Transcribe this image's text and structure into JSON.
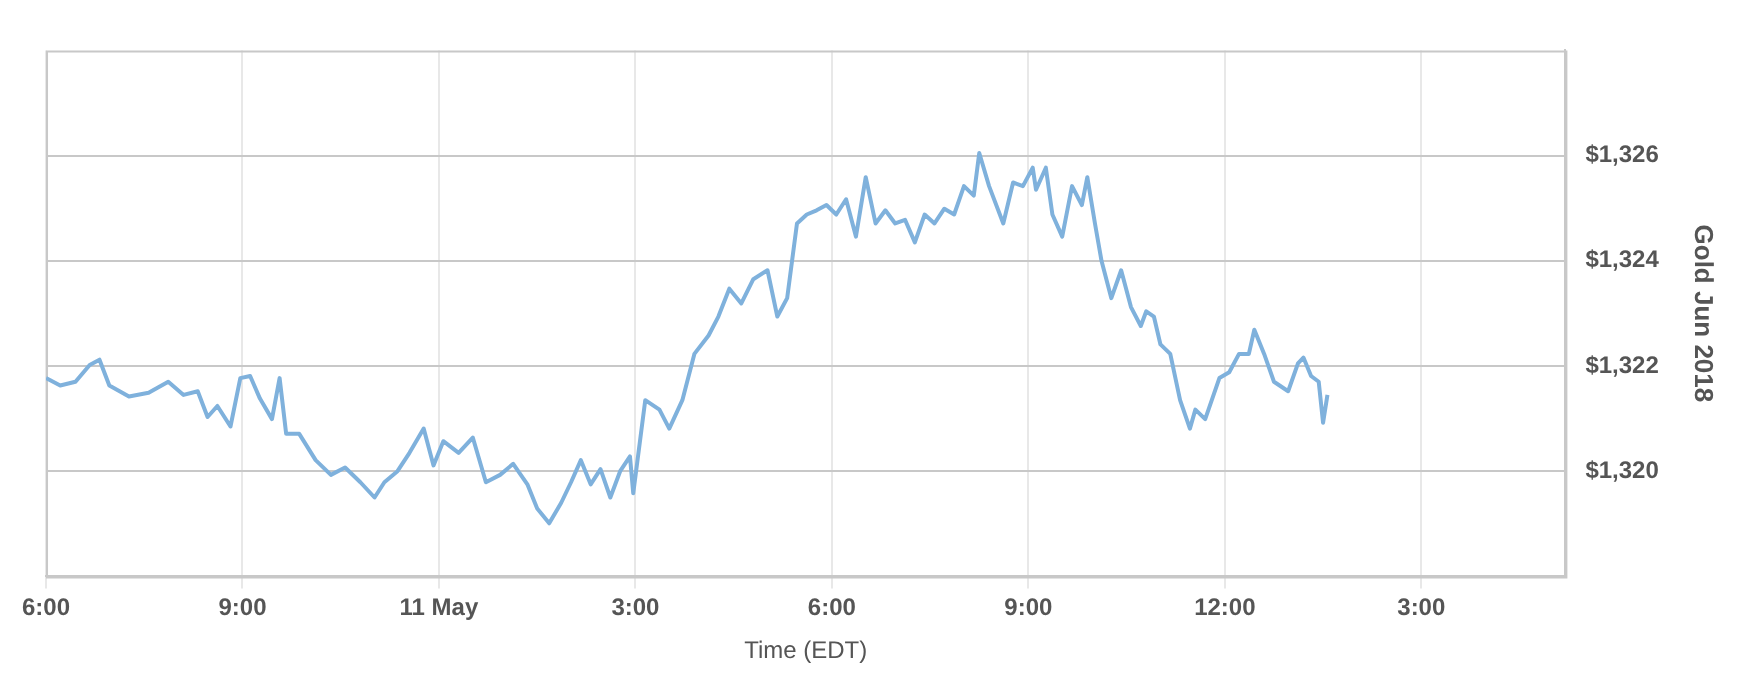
{
  "chart_data": {
    "type": "line",
    "xlabel": "Time (EDT)",
    "ylabel": "Gold Jun 2018",
    "grid": true,
    "legend": false,
    "marker": "none",
    "line_style": "solid",
    "xlim": [
      "--05-10T18:00",
      "--05-11T17:12"
    ],
    "xticks": [
      {
        "value": "--05-10T18:00",
        "label": "6:00"
      },
      {
        "value": "--05-10T21:00",
        "label": "9:00"
      },
      {
        "value": "--05-11T00:00",
        "label": "11 May"
      },
      {
        "value": "--05-11T03:00",
        "label": "3:00"
      },
      {
        "value": "--05-11T06:00",
        "label": "6:00"
      },
      {
        "value": "--05-11T09:00",
        "label": "9:00"
      },
      {
        "value": "--05-11T12:00",
        "label": "12:00"
      },
      {
        "value": "--05-11T15:00",
        "label": "3:00"
      }
    ],
    "ylim": [
      1318,
      1328
    ],
    "yticks": [
      {
        "value": 1320,
        "label": "$1,320"
      },
      {
        "value": 1322,
        "label": "$1,322"
      },
      {
        "value": 1324,
        "label": "$1,324"
      },
      {
        "value": 1326,
        "label": "$1,326"
      }
    ],
    "series": [
      {
        "color": "#7fb1dc",
        "x": [
          "--05-10T18:00",
          "--05-10T18:13",
          "--05-10T18:27",
          "--05-10T18:40",
          "--05-10T18:49",
          "--05-10T18:58",
          "--05-10T19:16",
          "--05-10T19:34",
          "--05-10T19:52",
          "--05-10T20:06",
          "--05-10T20:19",
          "--05-10T20:28",
          "--05-10T20:37",
          "--05-10T20:49",
          "--05-10T20:58",
          "--05-10T21:07",
          "--05-10T21:16",
          "--05-10T21:27",
          "--05-10T21:34",
          "--05-10T21:40",
          "--05-10T21:52",
          "--05-10T22:07",
          "--05-10T22:21",
          "--05-10T22:34",
          "--05-10T22:48",
          "--05-10T23:01",
          "--05-10T23:10",
          "--05-10T23:22",
          "--05-10T23:33",
          "--05-10T23:46",
          "--05-10T23:55",
          "--05-11T00:04",
          "--05-11T00:18",
          "--05-11T00:31",
          "--05-11T00:43",
          "--05-11T00:56",
          "--05-11T01:08",
          "--05-11T01:21",
          "--05-11T01:30",
          "--05-11T01:41",
          "--05-11T01:52",
          "--05-11T02:01",
          "--05-11T02:10",
          "--05-11T02:19",
          "--05-11T02:28",
          "--05-11T02:37",
          "--05-11T02:46",
          "--05-11T02:55",
          "--05-11T02:58",
          "--05-11T03:09",
          "--05-11T03:22",
          "--05-11T03:31",
          "--05-11T03:43",
          "--05-11T03:54",
          "--05-11T04:07",
          "--05-11T04:16",
          "--05-11T04:26",
          "--05-11T04:37",
          "--05-11T04:48",
          "--05-11T05:01",
          "--05-11T05:10",
          "--05-11T05:19",
          "--05-11T05:28",
          "--05-11T05:37",
          "--05-11T05:46",
          "--05-11T05:55",
          "--05-11T06:04",
          "--05-11T06:13",
          "--05-11T06:22",
          "--05-11T06:31",
          "--05-11T06:40",
          "--05-11T06:49",
          "--05-11T06:58",
          "--05-11T07:07",
          "--05-11T07:16",
          "--05-11T07:25",
          "--05-11T07:34",
          "--05-11T07:43",
          "--05-11T07:52",
          "--05-11T08:01",
          "--05-11T08:10",
          "--05-11T08:15",
          "--05-11T08:24",
          "--05-11T08:37",
          "--05-11T08:46",
          "--05-11T08:55",
          "--05-11T09:04",
          "--05-11T09:07",
          "--05-11T09:16",
          "--05-11T09:22",
          "--05-11T09:31",
          "--05-11T09:40",
          "--05-11T09:49",
          "--05-11T09:54",
          "--05-11T10:01",
          "--05-11T10:07",
          "--05-11T10:16",
          "--05-11T10:25",
          "--05-11T10:34",
          "--05-11T10:43",
          "--05-11T10:48",
          "--05-11T10:55",
          "--05-11T11:01",
          "--05-11T11:10",
          "--05-11T11:19",
          "--05-11T11:28",
          "--05-11T11:33",
          "--05-11T11:42",
          "--05-11T11:55",
          "--05-11T12:04",
          "--05-11T12:13",
          "--05-11T12:22",
          "--05-11T12:27",
          "--05-11T12:36",
          "--05-11T12:45",
          "--05-11T12:58",
          "--05-11T13:07",
          "--05-11T13:12",
          "--05-11T13:19",
          "--05-11T13:26",
          "--05-11T13:30",
          "--05-11T13:34"
        ],
        "values": [
          1321.77,
          1321.63,
          1321.7,
          1322.02,
          1322.12,
          1321.63,
          1321.42,
          1321.49,
          1321.7,
          1321.45,
          1321.52,
          1321.03,
          1321.24,
          1320.85,
          1321.77,
          1321.81,
          1321.38,
          1320.99,
          1321.77,
          1320.71,
          1320.71,
          1320.21,
          1319.93,
          1320.07,
          1319.79,
          1319.5,
          1319.79,
          1320.0,
          1320.35,
          1320.81,
          1320.11,
          1320.57,
          1320.35,
          1320.64,
          1319.79,
          1319.93,
          1320.14,
          1319.75,
          1319.29,
          1319.01,
          1319.4,
          1319.79,
          1320.21,
          1319.75,
          1320.04,
          1319.5,
          1320.0,
          1320.28,
          1319.58,
          1321.35,
          1321.17,
          1320.81,
          1321.35,
          1322.23,
          1322.58,
          1322.94,
          1323.47,
          1323.19,
          1323.65,
          1323.82,
          1322.94,
          1323.29,
          1324.71,
          1324.88,
          1324.96,
          1325.06,
          1324.88,
          1325.17,
          1324.46,
          1325.59,
          1324.71,
          1324.96,
          1324.71,
          1324.78,
          1324.35,
          1324.88,
          1324.71,
          1324.99,
          1324.88,
          1325.42,
          1325.24,
          1326.05,
          1325.42,
          1324.71,
          1325.49,
          1325.42,
          1325.77,
          1325.35,
          1325.77,
          1324.88,
          1324.46,
          1325.42,
          1325.06,
          1325.59,
          1324.71,
          1324.0,
          1323.29,
          1323.82,
          1323.12,
          1322.76,
          1323.04,
          1322.94,
          1322.41,
          1322.23,
          1321.35,
          1320.81,
          1321.17,
          1320.99,
          1321.77,
          1321.88,
          1322.23,
          1322.23,
          1322.69,
          1322.23,
          1321.7,
          1321.52,
          1322.05,
          1322.16,
          1321.81,
          1321.7,
          1320.92,
          1321.45
        ]
      }
    ]
  }
}
